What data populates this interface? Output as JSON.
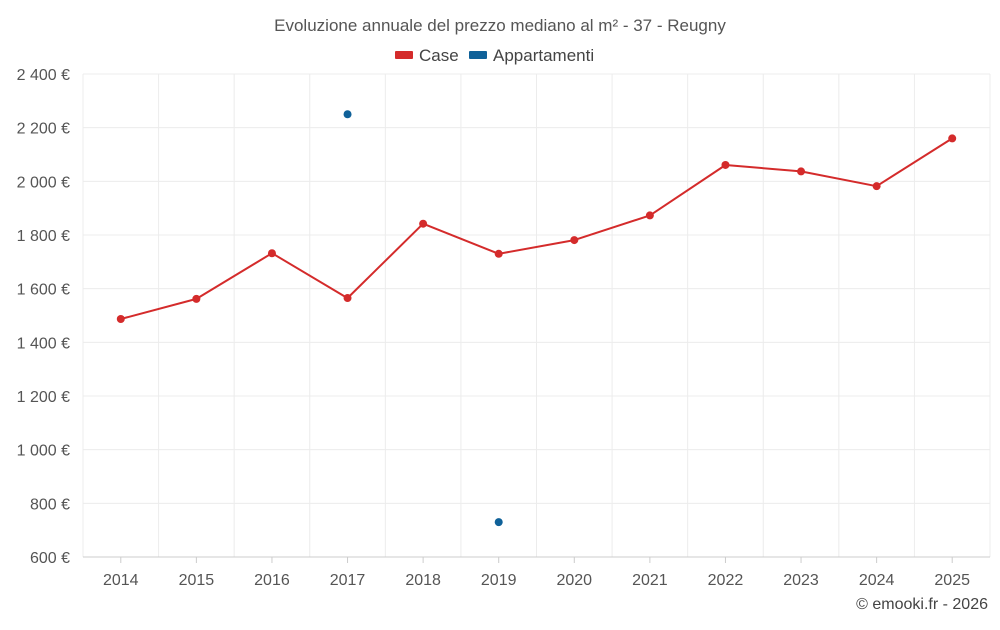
{
  "chart_data": {
    "type": "line",
    "title": "Evoluzione annuale del prezzo mediano al m² - 37 - Reugny",
    "categories": [
      "2014",
      "2015",
      "2016",
      "2017",
      "2018",
      "2019",
      "2020",
      "2021",
      "2022",
      "2023",
      "2024",
      "2025"
    ],
    "series": [
      {
        "name": "Case",
        "color": "#d42b2b",
        "connected": true,
        "values": [
          1487,
          1562,
          1732,
          1565,
          1842,
          1730,
          1781,
          1873,
          2061,
          2037,
          1982,
          2160
        ]
      },
      {
        "name": "Appartamenti",
        "color": "#0f6199",
        "connected": false,
        "values": [
          null,
          null,
          null,
          2250,
          null,
          730,
          null,
          null,
          null,
          null,
          null,
          null
        ]
      }
    ],
    "y_ticks": [
      "600 €",
      "800 €",
      "1 000 €",
      "1 200 €",
      "1 400 €",
      "1 600 €",
      "1 800 €",
      "2 000 €",
      "2 200 €",
      "2 400 €"
    ],
    "ylim": [
      600,
      2400
    ],
    "xlabel": "",
    "ylabel": "",
    "grid": true,
    "legend_position": "top-center"
  },
  "credit": "© emooki.fr - 2026"
}
